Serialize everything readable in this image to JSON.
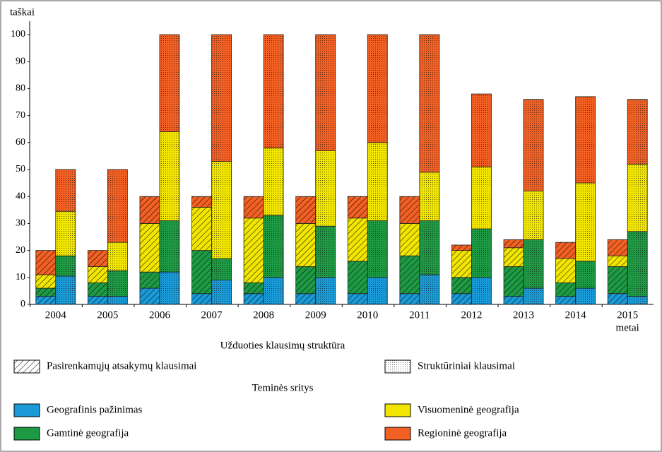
{
  "chart_data": {
    "type": "grouped-stacked-bar",
    "y_label": "taškai",
    "x_label": "metai",
    "categories": [
      "2004",
      "2005",
      "2006",
      "2007",
      "2008",
      "2009",
      "2010",
      "2011",
      "2012",
      "2013",
      "2014",
      "2015"
    ],
    "ylim": [
      0,
      100
    ],
    "yticks": [
      0,
      10,
      20,
      30,
      40,
      50,
      60,
      70,
      80,
      90,
      100
    ],
    "groups_title": "Užduoties klausimų struktūra",
    "groups": [
      {
        "name": "Pasirenkamųjų atsakymų klausimai",
        "pattern": "hatch"
      },
      {
        "name": "Struktūriniai klausimai",
        "pattern": "dots"
      }
    ],
    "series_title": "Teminės sritys",
    "series": [
      {
        "name": "Geografinis pažinimas",
        "color": "#1a9ad6",
        "values": [
          [
            3,
            10.5
          ],
          [
            3,
            3
          ],
          [
            6,
            12
          ],
          [
            4,
            9
          ],
          [
            4,
            10
          ],
          [
            4,
            10
          ],
          [
            4,
            10
          ],
          [
            4,
            11
          ],
          [
            4,
            10
          ],
          [
            3,
            6
          ],
          [
            3,
            6
          ],
          [
            4,
            3
          ]
        ]
      },
      {
        "name": "Gamtinė geografija",
        "color": "#1f9a44",
        "values": [
          [
            3,
            7.5
          ],
          [
            5,
            9.5
          ],
          [
            6,
            19
          ],
          [
            16,
            8
          ],
          [
            4,
            23
          ],
          [
            10,
            19
          ],
          [
            12,
            21
          ],
          [
            14,
            20
          ],
          [
            6,
            18
          ],
          [
            11,
            18
          ],
          [
            5,
            10
          ],
          [
            10,
            24
          ]
        ]
      },
      {
        "name": "Visuomeninė geografija",
        "color": "#f2e600",
        "values": [
          [
            5,
            16.5
          ],
          [
            6,
            10.5
          ],
          [
            18,
            33
          ],
          [
            16,
            36
          ],
          [
            24,
            25
          ],
          [
            16,
            28
          ],
          [
            16,
            29
          ],
          [
            12,
            18
          ],
          [
            10,
            23
          ],
          [
            7,
            18
          ],
          [
            9,
            29
          ],
          [
            4,
            25
          ]
        ]
      },
      {
        "name": "Regioninė geografija",
        "color": "#f26024",
        "values": [
          [
            9,
            15.5
          ],
          [
            6,
            27
          ],
          [
            10,
            36
          ],
          [
            4,
            47
          ],
          [
            8,
            42
          ],
          [
            10,
            43
          ],
          [
            8,
            40
          ],
          [
            10,
            51
          ],
          [
            2,
            27
          ],
          [
            3,
            34
          ],
          [
            6,
            32
          ],
          [
            6,
            24
          ]
        ]
      }
    ]
  }
}
